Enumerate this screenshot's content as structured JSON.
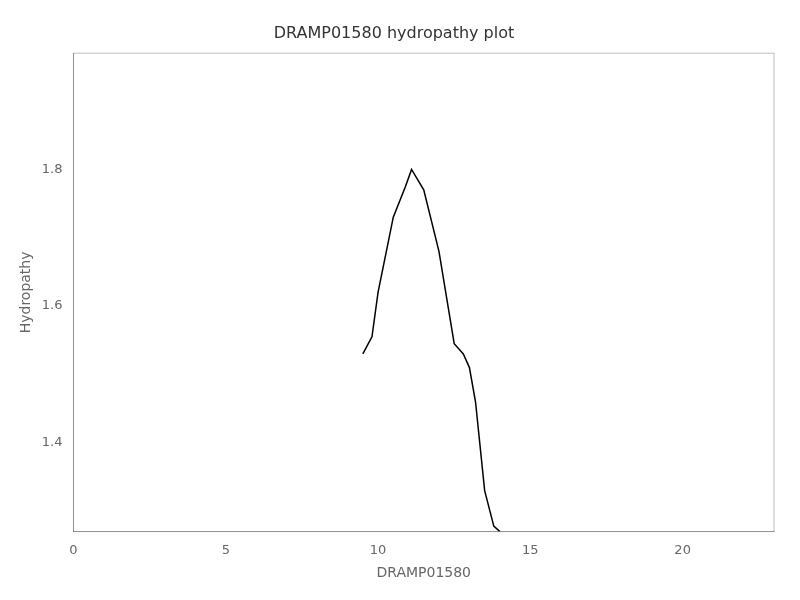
{
  "chart_data": {
    "type": "line",
    "title": "DRAMP01580 hydropathy plot",
    "xlabel": "DRAMP01580",
    "ylabel": "Hydropathy",
    "x": [
      9.5,
      9.8,
      10.0,
      10.5,
      10.9,
      11.1,
      11.5,
      12.0,
      12.5,
      12.8,
      13.0,
      13.2,
      13.5,
      13.8,
      14.0
    ],
    "values": [
      1.53,
      1.555,
      1.62,
      1.73,
      1.775,
      1.8,
      1.77,
      1.68,
      1.545,
      1.53,
      1.51,
      1.46,
      1.33,
      1.278,
      1.27
    ],
    "color": "#000000",
    "xlim": [
      0,
      23
    ],
    "ylim": [
      1.27,
      1.97
    ],
    "xticks": [
      0,
      5,
      10,
      15,
      20
    ],
    "yticks": [
      1.4,
      1.6,
      1.8
    ],
    "grid": false
  }
}
